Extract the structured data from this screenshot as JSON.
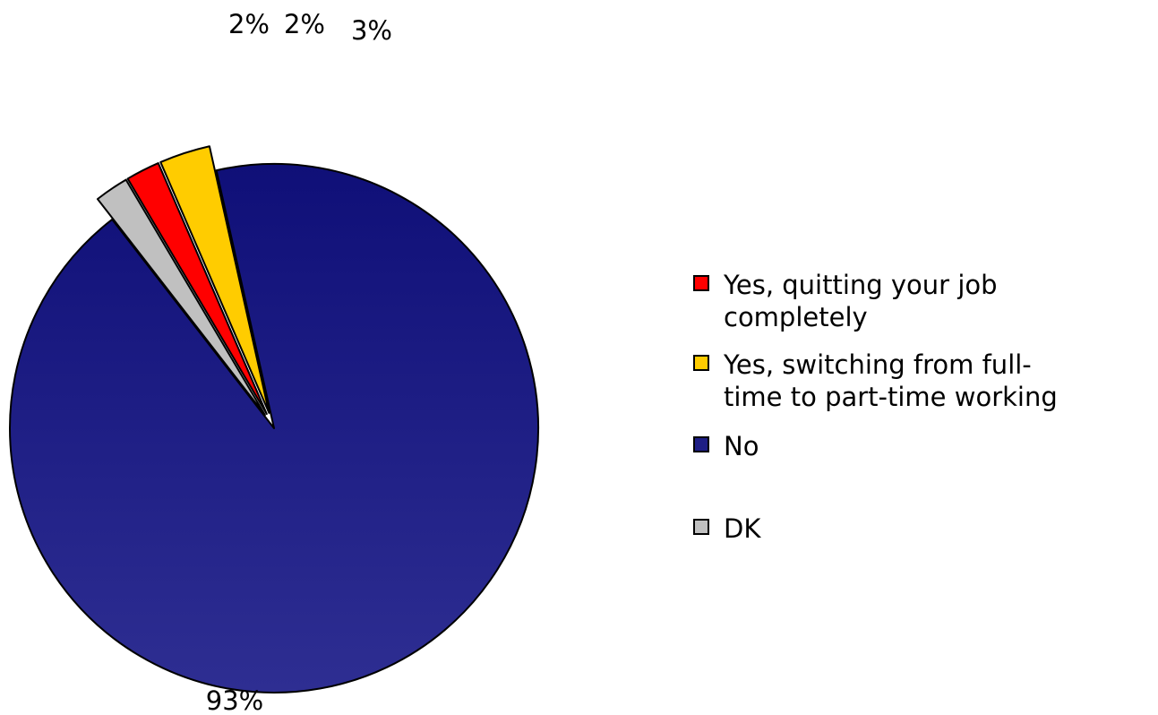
{
  "chart_data": {
    "type": "pie",
    "title": "",
    "slices": [
      {
        "label": "No",
        "value": 93,
        "display": "93%",
        "color": "#1e1e85"
      },
      {
        "label": "DK",
        "value": 2,
        "display": "2%",
        "color": "#c0c0c0"
      },
      {
        "label": "Yes, quitting your job completely",
        "value": 2,
        "display": "2%",
        "color": "#ff0000"
      },
      {
        "label": "Yes, switching from full-time to part-time working",
        "value": 3,
        "display": "3%",
        "color": "#ffcc00"
      }
    ],
    "legend_placement": "right",
    "exploded": [
      "DK",
      "Yes, quitting your job completely",
      "Yes, switching from full-time to part-time working"
    ]
  },
  "legend": {
    "items": [
      {
        "lines": [
          "Yes, quitting your job",
          "completely"
        ],
        "color": "#ff0000"
      },
      {
        "lines": [
          "Yes, switching from full-",
          "time to part-time working"
        ],
        "color": "#ffcc00"
      },
      {
        "lines": [
          "No"
        ],
        "color": "#1e1e85"
      },
      {
        "lines": [
          "DK"
        ],
        "color": "#c0c0c0"
      }
    ]
  }
}
